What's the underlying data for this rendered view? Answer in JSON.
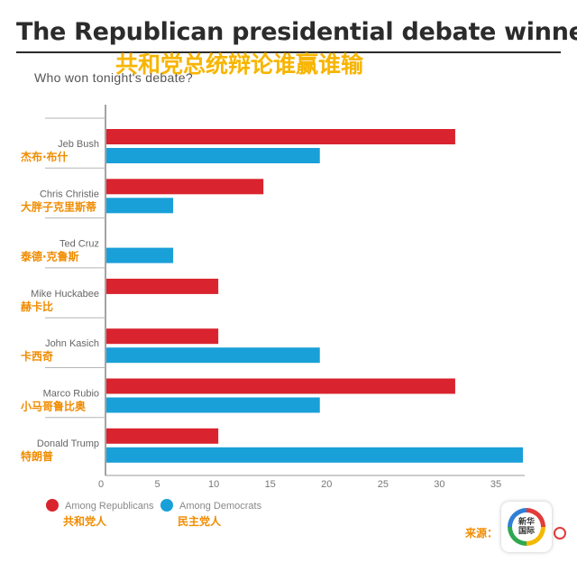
{
  "title": "The Republican presidential debate winner",
  "subtitle_cn": "共和党总统辩论谁赢谁输",
  "subtitle": "Who won tonight's debate?",
  "colors": {
    "republicans": "#d9232e",
    "democrats": "#1aa0d8",
    "cn_label": "#f08c00"
  },
  "legend": [
    {
      "label": "Among Republicans",
      "label_cn": "共和党人"
    },
    {
      "label": "Among Democrats",
      "label_cn": "民主党人"
    }
  ],
  "source_label": "来源：",
  "logo_text": [
    "新华",
    "国际"
  ],
  "chart_data": {
    "type": "bar",
    "orientation": "horizontal",
    "categories": [
      "Jeb Bush",
      "Chris Christie",
      "Ted Cruz",
      "Mike Huckabee",
      "John Kasich",
      "Marco Rubio",
      "Donald Trump"
    ],
    "categories_cn": [
      "杰布·布什",
      "大胖子克里斯蒂",
      "泰德·克鲁斯",
      "赫卡比",
      "卡西奇",
      "小马哥鲁比奥",
      "特朗普"
    ],
    "series": [
      {
        "name": "Among Republicans",
        "values": [
          31,
          14,
          null,
          10,
          10,
          31,
          10
        ]
      },
      {
        "name": "Among Democrats",
        "values": [
          19,
          6,
          6,
          null,
          19,
          19,
          37
        ]
      }
    ],
    "xlim": [
      0,
      37
    ],
    "xticks": [
      0,
      5,
      10,
      15,
      20,
      25,
      30,
      35
    ],
    "grid": false,
    "legend_position": "bottom-left"
  }
}
